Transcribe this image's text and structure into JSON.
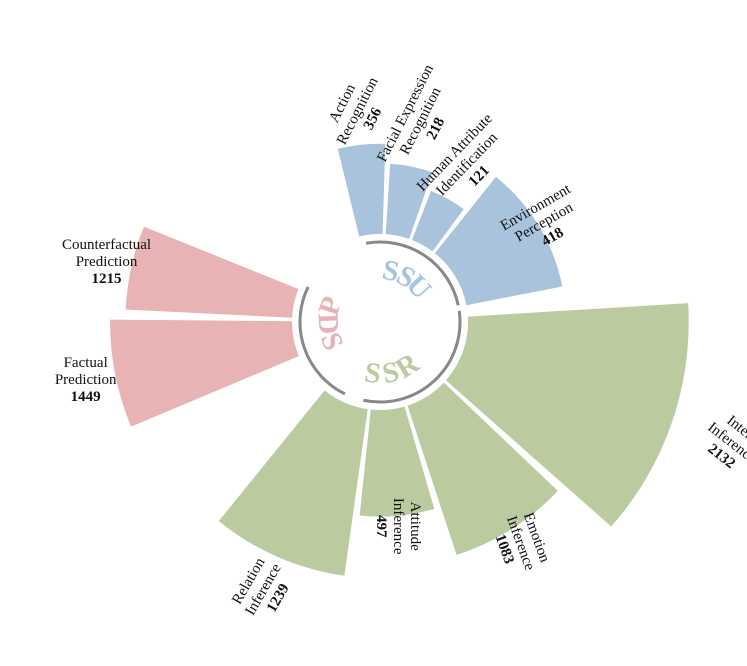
{
  "chart_data": {
    "type": "radial-bar",
    "title": "",
    "groups": [
      {
        "name": "SSU",
        "letters": [
          "S",
          "S",
          "U"
        ],
        "color": "#a9c3dd"
      },
      {
        "name": "SSR",
        "letters": [
          "S",
          "S",
          "R"
        ],
        "color": "#bccb9f"
      },
      {
        "name": "SDP",
        "letters": [
          "S",
          "D",
          "P"
        ],
        "color": "#e8b3b4"
      }
    ],
    "categories": [
      {
        "label_lines": [
          "Action",
          "Recognition"
        ],
        "value": 356,
        "group": "SSU"
      },
      {
        "label_lines": [
          "Facial Expression",
          "Recognition"
        ],
        "value": 218,
        "group": "SSU"
      },
      {
        "label_lines": [
          "Human Attribute",
          "Identification"
        ],
        "value": 121,
        "group": "SSU"
      },
      {
        "label_lines": [
          "Environment",
          "Perception"
        ],
        "value": 418,
        "group": "SSU"
      },
      {
        "label_lines": [
          "Intent",
          "Inference"
        ],
        "value": 2132,
        "group": "SSR"
      },
      {
        "label_lines": [
          "Emotion",
          "Inference"
        ],
        "value": 1083,
        "group": "SSR"
      },
      {
        "label_lines": [
          "Attitude",
          "Inference"
        ],
        "value": 497,
        "group": "SSR"
      },
      {
        "label_lines": [
          "Relation",
          "Inference"
        ],
        "value": 1239,
        "group": "SSR"
      },
      {
        "label_lines": [
          "Factual",
          "Prediction"
        ],
        "value": 1449,
        "group": "SDP"
      },
      {
        "label_lines": [
          "Counterfactual",
          "Prediction"
        ],
        "value": 1215,
        "group": "SDP"
      }
    ],
    "arc_color": "#888888"
  }
}
